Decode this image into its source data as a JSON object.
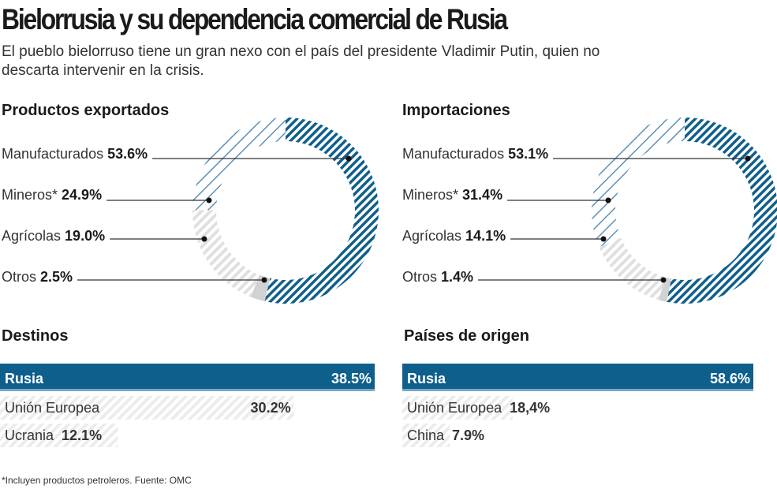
{
  "title": "Bielorrusia y su dependencia comercial de Rusia",
  "subtitle": "El pueblo bielorruso tiene un gran nexo con el país del presidente Vladimir Putin, quien no descarta intervenir en la crisis.",
  "footnote": "*Incluyen productos petroleros. Fuente: OMC",
  "colors": {
    "blue": "#0f5f8c",
    "light_blue": "#5d92b5",
    "gray": "#d6d6d6",
    "light_gray": "#e3e3e3"
  },
  "chart_data": [
    {
      "type": "pie",
      "title": "Productos exportados",
      "categories": [
        "Manufacturados",
        "Mineros*",
        "Agrícolas",
        "Otros"
      ],
      "values": [
        53.6,
        24.9,
        19.0,
        2.5
      ],
      "labels": [
        "53.6%",
        "24.9%",
        "19.0%",
        "2.5%"
      ]
    },
    {
      "type": "pie",
      "title": "Importaciones",
      "categories": [
        "Manufacturados",
        "Mineros*",
        "Agrícolas",
        "Otros"
      ],
      "values": [
        53.1,
        31.4,
        14.1,
        1.4
      ],
      "labels": [
        "53.1%",
        "31.4%",
        "14.1%",
        "1.4%"
      ]
    },
    {
      "type": "bar",
      "title": "Destinos",
      "categories": [
        "Rusia",
        "Unión Europea",
        "Ucrania"
      ],
      "values": [
        38.5,
        30.2,
        12.1
      ],
      "labels": [
        "38.5%",
        "30.2%",
        "12.1%"
      ]
    },
    {
      "type": "bar",
      "title": "Países de origen",
      "categories": [
        "Rusia",
        "Unión Europea",
        "China"
      ],
      "values": [
        58.6,
        18.4,
        7.9
      ],
      "labels": [
        "58.6%",
        "18,4%",
        "7.9%"
      ]
    }
  ]
}
